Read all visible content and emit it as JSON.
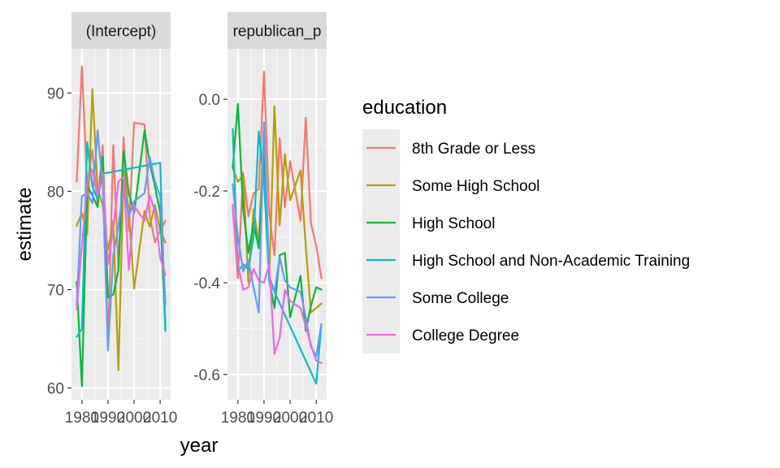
{
  "chart_data": {
    "type": "line",
    "xlabel": "year",
    "ylabel": "estimate",
    "x_breaks": [
      1980,
      1990,
      2000,
      2010
    ],
    "xlim": [
      1976,
      2014
    ],
    "grid": true,
    "legend": {
      "title": "education",
      "placement": "right",
      "entries": [
        {
          "label": "8th Grade or Less",
          "color": "#F8766D"
        },
        {
          "label": "Some High School",
          "color": "#B79F00"
        },
        {
          "label": "High School",
          "color": "#00BA38"
        },
        {
          "label": "High School and Non-Academic Training",
          "color": "#00BFC4"
        },
        {
          "label": "Some College",
          "color": "#619CFF"
        },
        {
          "label": "College Degree",
          "color": "#F564E3"
        }
      ]
    },
    "panels": [
      {
        "strip": "(Intercept)",
        "ylim": [
          58.8,
          94.5
        ],
        "y_breaks": [
          60,
          70,
          80,
          90
        ],
        "y_labels": [
          "60",
          "70",
          "80",
          "90"
        ],
        "series": [
          {
            "name": "8th Grade or Less",
            "color": "#F8766D",
            "x": [
              1978,
              1980,
              1982,
              1984,
              1986,
              1988,
              1990,
              1992,
              1994,
              1996,
              1998,
              2000,
              2004,
              2006,
              2008,
              2010,
              2012
            ],
            "y": [
              81,
              92.7,
              80.6,
              84.2,
              78.6,
              84.7,
              64.1,
              84.7,
              72,
              85.5,
              76,
              87,
              86.8,
              77.5,
              74.8,
              76,
              77
            ]
          },
          {
            "name": "Some High School",
            "color": "#B79F00",
            "x": [
              1978,
              1980,
              1982,
              1984,
              1986,
              1988,
              1990,
              1992,
              1994,
              1996,
              1998,
              2000,
              2004,
              2006,
              2008,
              2010,
              2012
            ],
            "y": [
              76.5,
              77.8,
              75.6,
              90.4,
              80.3,
              78.5,
              74,
              77,
              61.8,
              82.2,
              78,
              70.1,
              78,
              76.4,
              78.6,
              76,
              74.8
            ]
          },
          {
            "name": "High School",
            "color": "#00BA38",
            "x": [
              1978,
              1980,
              1982,
              1984,
              1986,
              1988,
              1990,
              1992,
              1994,
              1996,
              1998,
              2000,
              2004,
              2006,
              2008,
              2010,
              2012
            ],
            "y": [
              70.8,
              60.2,
              80.5,
              79.6,
              78.4,
              83.5,
              69.2,
              69.5,
              72,
              84.1,
              79.8,
              77.8,
              86.2,
              82.9,
              80.5,
              77.8,
              66
            ]
          },
          {
            "name": "High School and Non-Academic Training",
            "color": "#00BFC4",
            "x": [
              1978,
              1980,
              1982,
              1984,
              1986,
              1988,
              2010,
              2012
            ],
            "y": [
              65.2,
              66,
              85,
              80.5,
              79.2,
              81.8,
              82.9,
              65.8
            ]
          },
          {
            "name": "Some College",
            "color": "#619CFF",
            "x": [
              1978,
              1980,
              1982,
              1984,
              1986,
              1988,
              1990,
              1992,
              1994,
              1996,
              1998,
              2000,
              2004,
              2006,
              2008,
              2010,
              2012
            ],
            "y": [
              68.4,
              79.5,
              79.8,
              78.8,
              86.2,
              80.5,
              63.8,
              73.5,
              76.5,
              80.5,
              77.5,
              79,
              79.8,
              83.5,
              81,
              79.5,
              68.5
            ]
          },
          {
            "name": "College Degree",
            "color": "#F564E3",
            "x": [
              1978,
              1980,
              1982,
              1984,
              1986,
              1988,
              1990,
              1992,
              1994,
              1996,
              1998,
              2000,
              2004,
              2006,
              2008,
              2010,
              2012
            ],
            "y": [
              68,
              74.5,
              80.8,
              82.2,
              79.6,
              81.9,
              72.6,
              76.2,
              81,
              81.5,
              72,
              78.5,
              77,
              79.6,
              78,
              73.2,
              71.5
            ]
          }
        ]
      },
      {
        "strip": "republican_p",
        "ylim": [
          -0.655,
          0.11
        ],
        "y_breaks": [
          0.0,
          -0.2,
          -0.4,
          -0.6
        ],
        "y_labels": [
          "0.0",
          "-0.2",
          "-0.4",
          "-0.6"
        ],
        "series": [
          {
            "name": "8th Grade or Less",
            "color": "#F8766D",
            "x": [
              1978,
              1980,
              1982,
              1984,
              1986,
              1988,
              1990,
              1992,
              1994,
              1996,
              1998,
              2000,
              2004,
              2006,
              2008,
              2010,
              2012
            ],
            "y": [
              -0.235,
              -0.39,
              -0.16,
              -0.255,
              -0.205,
              -0.195,
              0.06,
              -0.25,
              -0.34,
              -0.085,
              -0.235,
              -0.135,
              -0.265,
              -0.04,
              -0.27,
              -0.32,
              -0.39
            ]
          },
          {
            "name": "Some High School",
            "color": "#B79F00",
            "x": [
              1978,
              1980,
              1982,
              1984,
              1986,
              1988,
              1990,
              1992,
              1994,
              1996,
              1998,
              2000,
              2004,
              2006,
              2008,
              2010,
              2012
            ],
            "y": [
              -0.15,
              -0.18,
              -0.165,
              -0.4,
              -0.24,
              -0.315,
              -0.055,
              -0.39,
              -0.015,
              -0.275,
              -0.12,
              -0.22,
              -0.155,
              -0.32,
              -0.465,
              -0.455,
              -0.445
            ]
          },
          {
            "name": "High School",
            "color": "#00BA38",
            "x": [
              1978,
              1980,
              1982,
              1984,
              1986,
              1988,
              1990,
              1992,
              1994,
              1996,
              1998,
              2000,
              2004,
              2006,
              2008,
              2010,
              2012
            ],
            "y": [
              -0.15,
              -0.01,
              -0.24,
              -0.335,
              -0.27,
              -0.325,
              -0.12,
              -0.395,
              -0.455,
              -0.34,
              -0.335,
              -0.475,
              -0.385,
              -0.505,
              -0.45,
              -0.41,
              -0.415
            ]
          },
          {
            "name": "High School and Non-Academic Training",
            "color": "#00BFC4",
            "x": [
              1978,
              1980,
              1982,
              1984,
              1986,
              1988,
              1990,
              1992,
              2010,
              2012
            ],
            "y": [
              -0.065,
              -0.375,
              -0.36,
              -0.37,
              -0.3,
              -0.07,
              -0.18,
              -0.395,
              -0.62,
              -0.49
            ]
          },
          {
            "name": "Some College",
            "color": "#619CFF",
            "x": [
              1978,
              1980,
              1982,
              1984,
              1986,
              1988,
              1990,
              1992,
              1994,
              1996,
              1998,
              2000,
              2004,
              2006,
              2008,
              2010,
              2012
            ],
            "y": [
              -0.185,
              -0.3,
              -0.375,
              -0.35,
              -0.41,
              -0.465,
              -0.05,
              -0.385,
              -0.42,
              -0.345,
              -0.395,
              -0.41,
              -0.42,
              -0.475,
              -0.54,
              -0.56,
              -0.49
            ]
          },
          {
            "name": "College Degree",
            "color": "#F564E3",
            "x": [
              1978,
              1980,
              1982,
              1984,
              1986,
              1988,
              1990,
              1992,
              1994,
              1996,
              1998,
              2000,
              2004,
              2006,
              2008,
              2010,
              2012
            ],
            "y": [
              -0.23,
              -0.36,
              -0.415,
              -0.41,
              -0.37,
              -0.395,
              -0.4,
              -0.36,
              -0.555,
              -0.52,
              -0.415,
              -0.44,
              -0.455,
              -0.495,
              -0.535,
              -0.57,
              -0.575
            ]
          }
        ]
      }
    ]
  }
}
